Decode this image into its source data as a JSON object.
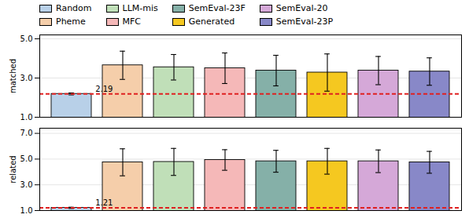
{
  "chart_data": [
    {
      "type": "bar",
      "categories": [
        "Random",
        "Pheme",
        "LLM-mis",
        "MFC",
        "SemEval-23F",
        "Generated",
        "SemEval-20",
        "SemEval-23P"
      ],
      "values": [
        2.19,
        3.65,
        3.55,
        3.5,
        3.38,
        3.28,
        3.38,
        3.33
      ],
      "errors": [
        0.05,
        0.72,
        0.65,
        0.78,
        0.78,
        0.95,
        0.72,
        0.7
      ],
      "colors": [
        "#b8d0e8",
        "#f5ceaa",
        "#c0dfb8",
        "#f5b8b8",
        "#85b0a8",
        "#f5c820",
        "#d5a8d8",
        "#8888c8"
      ],
      "reference_line": {
        "value": 2.19,
        "color": "#e02020"
      },
      "annotation": "2.19",
      "ylabel": "matched",
      "ylim": [
        1.0,
        5.2
      ],
      "yticks": [
        1,
        3,
        5
      ],
      "grid": true,
      "tick_labels": "y",
      "legend": "top",
      "legend_entries": [
        "Random",
        "LLM-mis",
        "SemEval-23F",
        "SemEval-20",
        "Pheme",
        "MFC",
        "Generated",
        "SemEval-23P"
      ]
    },
    {
      "type": "bar",
      "categories": [
        "Random",
        "Pheme",
        "LLM-mis",
        "MFC",
        "SemEval-23F",
        "Generated",
        "SemEval-20",
        "SemEval-23P"
      ],
      "values": [
        1.21,
        4.75,
        4.78,
        4.93,
        4.83,
        4.83,
        4.83,
        4.75
      ],
      "errors": [
        0.05,
        1.05,
        1.05,
        0.8,
        0.85,
        1.0,
        0.88,
        0.85
      ],
      "colors": [
        "#b8d0e8",
        "#f5ceaa",
        "#c0dfb8",
        "#f5b8b8",
        "#85b0a8",
        "#f5c820",
        "#d5a8d8",
        "#8888c8"
      ],
      "reference_line": {
        "value": 1.21,
        "color": "#e02020"
      },
      "annotation": "1.21",
      "ylabel": "related",
      "ylim": [
        1.0,
        7.4
      ],
      "yticks": [
        1,
        3,
        5,
        7
      ],
      "grid": true,
      "tick_labels": "y"
    }
  ]
}
